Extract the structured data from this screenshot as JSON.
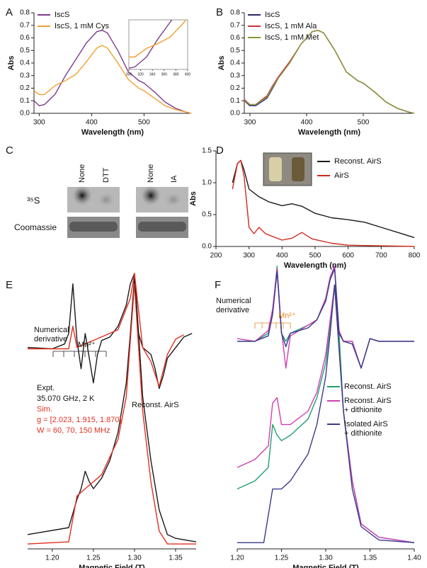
{
  "gel": {
    "label": "C",
    "lanes": [
      "None",
      "DTT",
      "None",
      "IA"
    ],
    "rows": [
      "³⁵S",
      "Coomassie"
    ]
  },
  "chart_data": [
    {
      "type": "line",
      "label": "A",
      "xlabel": "Wavelength (nm)",
      "ylabel": "Abs",
      "x": [
        290,
        300,
        310,
        330,
        350,
        370,
        390,
        410,
        420,
        430,
        450,
        470,
        490,
        500,
        520,
        540,
        560,
        580,
        590
      ],
      "xlim": [
        290,
        590
      ],
      "xticks": [
        300,
        400,
        500
      ],
      "ylim": [
        0,
        0.8
      ],
      "yticks": [
        {
          "value": 0,
          "label": "0.0"
        },
        0.1,
        0.2,
        0.3,
        0.4,
        0.5,
        0.6,
        0.7,
        0.8
      ],
      "legend": "upper left",
      "series": [
        {
          "name": "IscS",
          "color": "#7d3c8c",
          "values": [
            0.1,
            0.06,
            0.07,
            0.15,
            0.3,
            0.43,
            0.56,
            0.65,
            0.66,
            0.64,
            0.5,
            0.33,
            0.26,
            0.24,
            0.17,
            0.09,
            0.04,
            0.01,
            0
          ]
        },
        {
          "name": "IscS, 1 mM Cys",
          "color": "#f0a030",
          "values": [
            0.18,
            0.15,
            0.15,
            0.22,
            0.26,
            0.31,
            0.41,
            0.52,
            0.54,
            0.52,
            0.4,
            0.27,
            0.2,
            0.18,
            0.12,
            0.06,
            0.03,
            0.01,
            0
          ]
        }
      ],
      "inset": {
        "xlim": [
          300,
          400
        ],
        "ylim": [
          0.05,
          0.45
        ],
        "xticks": [
          300,
          320,
          340,
          360,
          380,
          400
        ]
      }
    },
    {
      "type": "line",
      "label": "B",
      "xlabel": "Wavelength (nm)",
      "ylabel": "Abs",
      "x": [
        290,
        300,
        310,
        330,
        340,
        350,
        370,
        390,
        410,
        420,
        430,
        450,
        470,
        490,
        500,
        520,
        540,
        560,
        580,
        590
      ],
      "xlim": [
        290,
        590
      ],
      "xticks": [
        300,
        400,
        500
      ],
      "ylim": [
        0,
        0.8
      ],
      "yticks": [
        {
          "value": 0,
          "label": "0.0"
        },
        0.1,
        0.2,
        0.3,
        0.4,
        0.5,
        0.6,
        0.7,
        0.8
      ],
      "legend": "upper left",
      "series": [
        {
          "name": "IscS",
          "color": "#2a2a6a",
          "values": [
            0.1,
            0.06,
            0.06,
            0.12,
            0.2,
            0.28,
            0.4,
            0.55,
            0.65,
            0.66,
            0.64,
            0.5,
            0.33,
            0.26,
            0.24,
            0.17,
            0.09,
            0.04,
            0.01,
            0
          ]
        },
        {
          "name": "IscS, 1 mM Ala",
          "color": "#d0303a",
          "values": [
            0.11,
            0.07,
            0.07,
            0.14,
            0.22,
            0.29,
            0.41,
            0.55,
            0.65,
            0.66,
            0.64,
            0.5,
            0.33,
            0.26,
            0.24,
            0.17,
            0.09,
            0.04,
            0.01,
            0
          ]
        },
        {
          "name": "IscS, 1 mM Met",
          "color": "#8a9a3a",
          "values": [
            0.1,
            0.07,
            0.07,
            0.13,
            0.21,
            0.28,
            0.4,
            0.55,
            0.65,
            0.66,
            0.64,
            0.5,
            0.33,
            0.26,
            0.24,
            0.17,
            0.09,
            0.04,
            0.01,
            0
          ]
        }
      ]
    },
    {
      "type": "line",
      "label": "D",
      "xlabel": "Wavelength (nm)",
      "ylabel": "Abs",
      "xlim": [
        200,
        800
      ],
      "xticks": [
        200,
        300,
        400,
        500,
        600,
        700,
        800
      ],
      "ylim": [
        0,
        1.5
      ],
      "yticks": [
        {
          "value": 0,
          "label": "0.0"
        },
        0.5,
        {
          "value": 1,
          "label": "1.0"
        },
        1.5
      ],
      "legend": "upper right",
      "series": [
        {
          "name": "Reconst. AirS",
          "color": "#1a1a1a",
          "x": [
            250,
            265,
            275,
            285,
            300,
            330,
            360,
            400,
            430,
            460,
            500,
            550,
            600,
            650,
            700,
            750,
            800
          ],
          "values": [
            1.0,
            1.3,
            1.35,
            1.2,
            0.9,
            0.78,
            0.7,
            0.64,
            0.67,
            0.63,
            0.52,
            0.45,
            0.42,
            0.38,
            0.3,
            0.22,
            0.14
          ]
        },
        {
          "name": "AirS",
          "color": "#d02a20",
          "x": [
            250,
            265,
            275,
            285,
            300,
            315,
            330,
            350,
            400,
            430,
            460,
            490,
            550,
            600,
            700,
            800
          ],
          "values": [
            0.9,
            1.3,
            1.35,
            1.1,
            0.3,
            0.2,
            0.3,
            0.2,
            0.1,
            0.13,
            0.22,
            0.12,
            0.05,
            0.02,
            0.01,
            0
          ]
        }
      ]
    },
    {
      "type": "line",
      "label": "E",
      "xlabel": "Magnetic Field (T)",
      "xlim": [
        1.17,
        1.375
      ],
      "xticks": [
        {
          "value": 1.2,
          "label": "1.20"
        },
        1.25,
        {
          "value": 1.3,
          "label": "1.30"
        },
        1.35
      ],
      "ylim": [
        0,
        1.05
      ],
      "series": [
        {
          "color": "#1a1a1a",
          "x": [
            1.17,
            1.22,
            1.23,
            1.235,
            1.24,
            1.245,
            1.25,
            1.26,
            1.27,
            1.28,
            1.29,
            1.295,
            1.3,
            1.305,
            1.31,
            1.32,
            1.33,
            1.34,
            1.35,
            1.375
          ],
          "values": [
            0.04,
            0.066,
            0.171,
            0.211,
            0.276,
            0.237,
            0.211,
            0.25,
            0.316,
            0.421,
            0.605,
            0.789,
            1,
            0.789,
            0.553,
            0.316,
            0.132,
            0.04,
            0.026,
            0.013
          ]
        },
        {
          "color": "#e03020",
          "x": [
            1.17,
            1.22,
            1.23,
            1.24,
            1.26,
            1.28,
            1.29,
            1.3,
            1.31,
            1.32,
            1.33,
            1.34,
            1.375
          ],
          "values": [
            0.005,
            0.013,
            0.184,
            0.211,
            0.263,
            0.395,
            0.553,
            0.974,
            0.5,
            0.237,
            0.053,
            0.005,
            0.005
          ]
        },
        {
          "color": "#1a1a1a",
          "x": [
            1.17,
            1.2,
            1.215,
            1.22,
            1.225,
            1.23,
            1.235,
            1.24,
            1.245,
            1.25,
            1.255,
            1.26,
            1.27,
            1.28,
            1.29,
            1.295,
            1.3,
            1.305,
            1.31,
            1.32,
            1.325,
            1.33,
            1.335,
            1.34,
            1.36,
            1.37
          ],
          "values": [
            0.737,
            0.732,
            0.75,
            0.789,
            0.974,
            0.763,
            0.658,
            0.789,
            0.697,
            0.605,
            0.711,
            0.763,
            0.776,
            0.816,
            0.895,
            0.974,
            1.013,
            0.789,
            0.737,
            0.711,
            0.658,
            0.584,
            0.632,
            0.697,
            0.776,
            0.789
          ]
        },
        {
          "color": "#e03020",
          "x": [
            1.17,
            1.22,
            1.225,
            1.23,
            1.28,
            1.295,
            1.3,
            1.31,
            1.32,
            1.33,
            1.34,
            1.35,
            1.36
          ],
          "values": [
            0.732,
            0.732,
            0.816,
            0.737,
            0.803,
            0.921,
            1.013,
            0.737,
            0.684,
            0.592,
            0.711,
            0.768,
            0.784
          ]
        }
      ],
      "annotations": [
        {
          "text": "Numerical\nderivative"
        },
        {
          "text": "Mn²⁺"
        },
        {
          "text": "Expt."
        },
        {
          "text": "35.070 GHz, 2 K"
        },
        {
          "text": "Sim.",
          "color": "#e03020"
        },
        {
          "text": "g = [2.023, 1.915, 1.870]",
          "color": "#e03020"
        },
        {
          "text": "W = 60, 70, 150 MHz",
          "color": "#e03020"
        },
        {
          "text": "Reconst. AirS"
        }
      ]
    },
    {
      "type": "line",
      "label": "F",
      "xlabel": "Magnetic Field (T)",
      "xlim": [
        1.2,
        1.4
      ],
      "xticks": [
        {
          "value": 1.2,
          "label": "1.20"
        },
        1.25,
        {
          "value": 1.3,
          "label": "1.30"
        },
        1.35,
        {
          "value": 1.4,
          "label": "1.40"
        }
      ],
      "ylim": [
        0,
        1.05
      ],
      "legend": "center right",
      "series": [
        {
          "name": "Reconst. AirS",
          "color": "#20a070",
          "x": [
            1.2,
            1.22,
            1.235,
            1.24,
            1.245,
            1.25,
            1.26,
            1.28,
            1.29,
            1.3,
            1.305,
            1.31,
            1.315,
            1.32,
            1.33,
            1.34,
            1.36,
            1.4
          ],
          "values": [
            0.21,
            0.24,
            0.29,
            0.45,
            0.41,
            0.39,
            0.41,
            0.47,
            0.55,
            0.68,
            0.82,
            0.97,
            0.79,
            0.5,
            0.24,
            0.08,
            0.03,
            0.01
          ]
        },
        {
          "name": "Reconst. AirS\n+ dithionite",
          "color": "#d040b0",
          "x": [
            1.2,
            1.22,
            1.235,
            1.24,
            1.245,
            1.25,
            1.26,
            1.28,
            1.29,
            1.3,
            1.31,
            1.32,
            1.33,
            1.34,
            1.36,
            1.4
          ],
          "values": [
            0.29,
            0.32,
            0.37,
            0.53,
            0.55,
            0.45,
            0.45,
            0.5,
            0.57,
            0.71,
            0.97,
            0.5,
            0.24,
            0.08,
            0.03,
            0.01
          ]
        },
        {
          "name": "Isolated AirS\n+ dithionite",
          "color": "#3a3a8a",
          "x": [
            1.2,
            1.23,
            1.24,
            1.25,
            1.26,
            1.28,
            1.29,
            1.3,
            1.305,
            1.31,
            1.32,
            1.33,
            1.34,
            1.36,
            1.4
          ],
          "values": [
            0.01,
            0.01,
            0.21,
            0.21,
            0.24,
            0.34,
            0.45,
            0.63,
            0.79,
            0.97,
            0.5,
            0.21,
            0.07,
            0.02,
            0.01
          ]
        },
        {
          "color": "#20a070",
          "x": [
            1.2,
            1.22,
            1.235,
            1.24,
            1.245,
            1.25,
            1.255,
            1.26,
            1.28,
            1.29,
            1.3,
            1.305,
            1.31,
            1.315,
            1.32,
            1.33,
            1.34,
            1.35,
            1.36,
            1.4
          ],
          "values": [
            0.76,
            0.76,
            0.79,
            0.87,
            1.04,
            0.79,
            0.76,
            0.79,
            0.82,
            0.84,
            0.92,
            1.0,
            1.04,
            0.79,
            0.76,
            0.76,
            0.66,
            0.77,
            0.76,
            0.76
          ]
        },
        {
          "color": "#d040b0",
          "x": [
            1.2,
            1.22,
            1.235,
            1.24,
            1.245,
            1.25,
            1.255,
            1.26,
            1.28,
            1.29,
            1.3,
            1.305,
            1.31,
            1.315,
            1.32,
            1.33,
            1.34,
            1.35,
            1.36,
            1.4
          ],
          "values": [
            0.77,
            0.76,
            0.8,
            0.88,
            1.03,
            0.8,
            0.66,
            0.78,
            0.82,
            0.84,
            0.92,
            1.0,
            1.04,
            0.8,
            0.76,
            0.76,
            0.66,
            0.77,
            0.76,
            0.76
          ]
        },
        {
          "color": "#3a3a8a",
          "x": [
            1.2,
            1.22,
            1.235,
            1.24,
            1.245,
            1.25,
            1.255,
            1.26,
            1.28,
            1.29,
            1.3,
            1.305,
            1.31,
            1.315,
            1.32,
            1.33,
            1.34,
            1.35,
            1.36,
            1.4
          ],
          "values": [
            0.76,
            0.76,
            0.78,
            0.86,
            1.02,
            0.79,
            0.74,
            0.79,
            0.81,
            0.84,
            0.91,
            0.99,
            1.03,
            0.79,
            0.76,
            0.75,
            0.66,
            0.77,
            0.76,
            0.76
          ]
        }
      ],
      "annotations": [
        {
          "text": "Numerical\nderivative"
        },
        {
          "text": "Mn²⁺",
          "color": "#e08a20"
        }
      ]
    }
  ]
}
